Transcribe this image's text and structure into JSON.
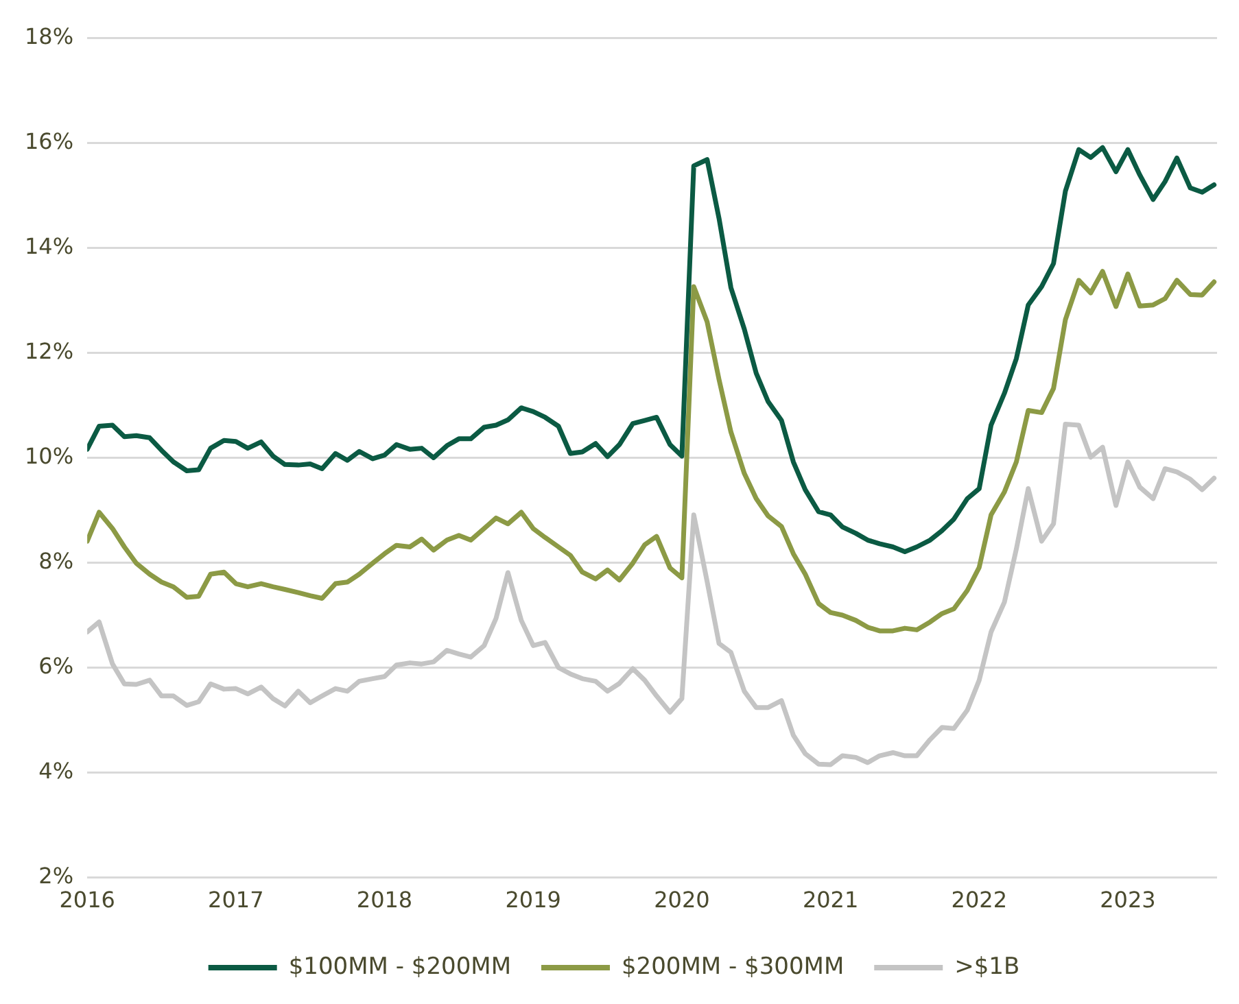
{
  "chart_data": {
    "type": "line",
    "x": [
      2016.0,
      2016.08,
      2016.17,
      2016.25,
      2016.33,
      2016.42,
      2016.5,
      2016.58,
      2016.67,
      2016.75,
      2016.83,
      2016.92,
      2017.0,
      2017.08,
      2017.17,
      2017.25,
      2017.33,
      2017.42,
      2017.5,
      2017.58,
      2017.67,
      2017.75,
      2017.83,
      2017.92,
      2018.0,
      2018.08,
      2018.17,
      2018.25,
      2018.33,
      2018.42,
      2018.5,
      2018.58,
      2018.67,
      2018.75,
      2018.83,
      2018.92,
      2019.0,
      2019.08,
      2019.17,
      2019.25,
      2019.33,
      2019.42,
      2019.5,
      2019.58,
      2019.67,
      2019.75,
      2019.83,
      2019.92,
      2020.0,
      2020.08,
      2020.17,
      2020.25,
      2020.33,
      2020.42,
      2020.5,
      2020.58,
      2020.67,
      2020.75,
      2020.83,
      2020.92,
      2021.0,
      2021.08,
      2021.17,
      2021.25,
      2021.33,
      2021.42,
      2021.5,
      2021.58,
      2021.67,
      2021.75,
      2021.83,
      2021.92,
      2022.0,
      2022.08,
      2022.17,
      2022.25,
      2022.33,
      2022.42,
      2022.5,
      2022.58,
      2022.67,
      2022.75,
      2022.83,
      2022.92,
      2023.0,
      2023.08,
      2023.17,
      2023.25,
      2023.33,
      2023.42,
      2023.5,
      2023.58
    ],
    "series": [
      {
        "name": "$100MM - $200MM",
        "color": "#0b5a43",
        "values": [
          10.16,
          10.6,
          10.62,
          10.4,
          10.42,
          10.38,
          10.14,
          9.92,
          9.75,
          9.77,
          10.18,
          10.33,
          10.31,
          10.18,
          10.3,
          10.03,
          9.87,
          9.86,
          9.88,
          9.79,
          10.08,
          9.95,
          10.12,
          9.98,
          10.05,
          10.25,
          10.16,
          10.18,
          10.0,
          10.23,
          10.36,
          10.36,
          10.58,
          10.62,
          10.72,
          10.95,
          10.88,
          10.77,
          10.6,
          10.08,
          10.11,
          10.27,
          10.02,
          10.25,
          10.65,
          10.71,
          10.77,
          10.25,
          10.03,
          15.56,
          15.68,
          14.56,
          13.24,
          12.45,
          11.61,
          11.07,
          10.71,
          9.92,
          9.39,
          8.97,
          8.91,
          8.68,
          8.56,
          8.43,
          8.36,
          8.3,
          8.21,
          8.3,
          8.43,
          8.61,
          8.83,
          9.22,
          9.41,
          10.62,
          11.23,
          11.89,
          12.91,
          13.26,
          13.7,
          15.08,
          15.87,
          15.72,
          15.91,
          15.45,
          15.87,
          15.39,
          14.92,
          15.26,
          15.71,
          15.14,
          15.06,
          15.2
        ]
      },
      {
        "name": "$200MM - $300MM",
        "color": "#8c9a45",
        "values": [
          8.41,
          8.96,
          8.65,
          8.3,
          7.99,
          7.78,
          7.63,
          7.54,
          7.34,
          7.36,
          7.78,
          7.82,
          7.6,
          7.54,
          7.6,
          7.54,
          7.49,
          7.43,
          7.37,
          7.32,
          7.6,
          7.63,
          7.78,
          7.99,
          8.17,
          8.33,
          8.3,
          8.45,
          8.24,
          8.43,
          8.52,
          8.43,
          8.65,
          8.85,
          8.74,
          8.96,
          8.65,
          8.48,
          8.3,
          8.14,
          7.82,
          7.69,
          7.86,
          7.67,
          7.99,
          8.34,
          8.5,
          7.9,
          7.71,
          13.26,
          12.59,
          11.49,
          10.49,
          9.7,
          9.22,
          8.89,
          8.69,
          8.17,
          7.78,
          7.22,
          7.05,
          7.0,
          6.9,
          6.77,
          6.7,
          6.7,
          6.75,
          6.72,
          6.87,
          7.03,
          7.12,
          7.47,
          7.91,
          8.91,
          9.35,
          9.92,
          10.9,
          10.86,
          11.32,
          12.63,
          13.38,
          13.14,
          13.55,
          12.88,
          13.5,
          12.89,
          12.91,
          13.03,
          13.38,
          13.11,
          13.1,
          13.35
        ]
      },
      {
        "name": ">$1B",
        "color": "#c4c4c4",
        "values": [
          6.68,
          6.87,
          6.07,
          5.69,
          5.68,
          5.76,
          5.46,
          5.46,
          5.28,
          5.35,
          5.69,
          5.59,
          5.6,
          5.5,
          5.63,
          5.41,
          5.27,
          5.55,
          5.33,
          5.46,
          5.6,
          5.55,
          5.74,
          5.79,
          5.83,
          6.05,
          6.09,
          6.07,
          6.11,
          6.33,
          6.26,
          6.2,
          6.42,
          6.94,
          7.81,
          6.9,
          6.42,
          6.48,
          6.0,
          5.88,
          5.79,
          5.74,
          5.55,
          5.7,
          5.98,
          5.76,
          5.46,
          5.15,
          5.41,
          8.91,
          7.64,
          6.46,
          6.29,
          5.55,
          5.24,
          5.24,
          5.37,
          4.71,
          4.36,
          4.16,
          4.15,
          4.32,
          4.29,
          4.19,
          4.32,
          4.38,
          4.32,
          4.32,
          4.63,
          4.86,
          4.84,
          5.19,
          5.76,
          6.68,
          7.25,
          8.26,
          9.41,
          8.41,
          8.74,
          10.64,
          10.62,
          10.01,
          10.2,
          9.09,
          9.92,
          9.44,
          9.22,
          9.79,
          9.73,
          9.59,
          9.39,
          9.61
        ]
      }
    ],
    "xlim": [
      2016,
      2023.6
    ],
    "xticks": [
      2016,
      2017,
      2018,
      2019,
      2020,
      2021,
      2022,
      2023
    ],
    "ylim": [
      2,
      18
    ],
    "yticks": [
      {
        "value": 2,
        "label": "2%"
      },
      {
        "value": 4,
        "label": "4%"
      },
      {
        "value": 6,
        "label": "6%"
      },
      {
        "value": 8,
        "label": "8%"
      },
      {
        "value": 10,
        "label": "10%"
      },
      {
        "value": 12,
        "label": "12%"
      },
      {
        "value": 14,
        "label": "14%"
      },
      {
        "value": 16,
        "label": "16%"
      },
      {
        "value": 18,
        "label": "18%"
      }
    ],
    "grid": "y",
    "legend": "bottom",
    "marker": "none",
    "line_style": "solid"
  }
}
